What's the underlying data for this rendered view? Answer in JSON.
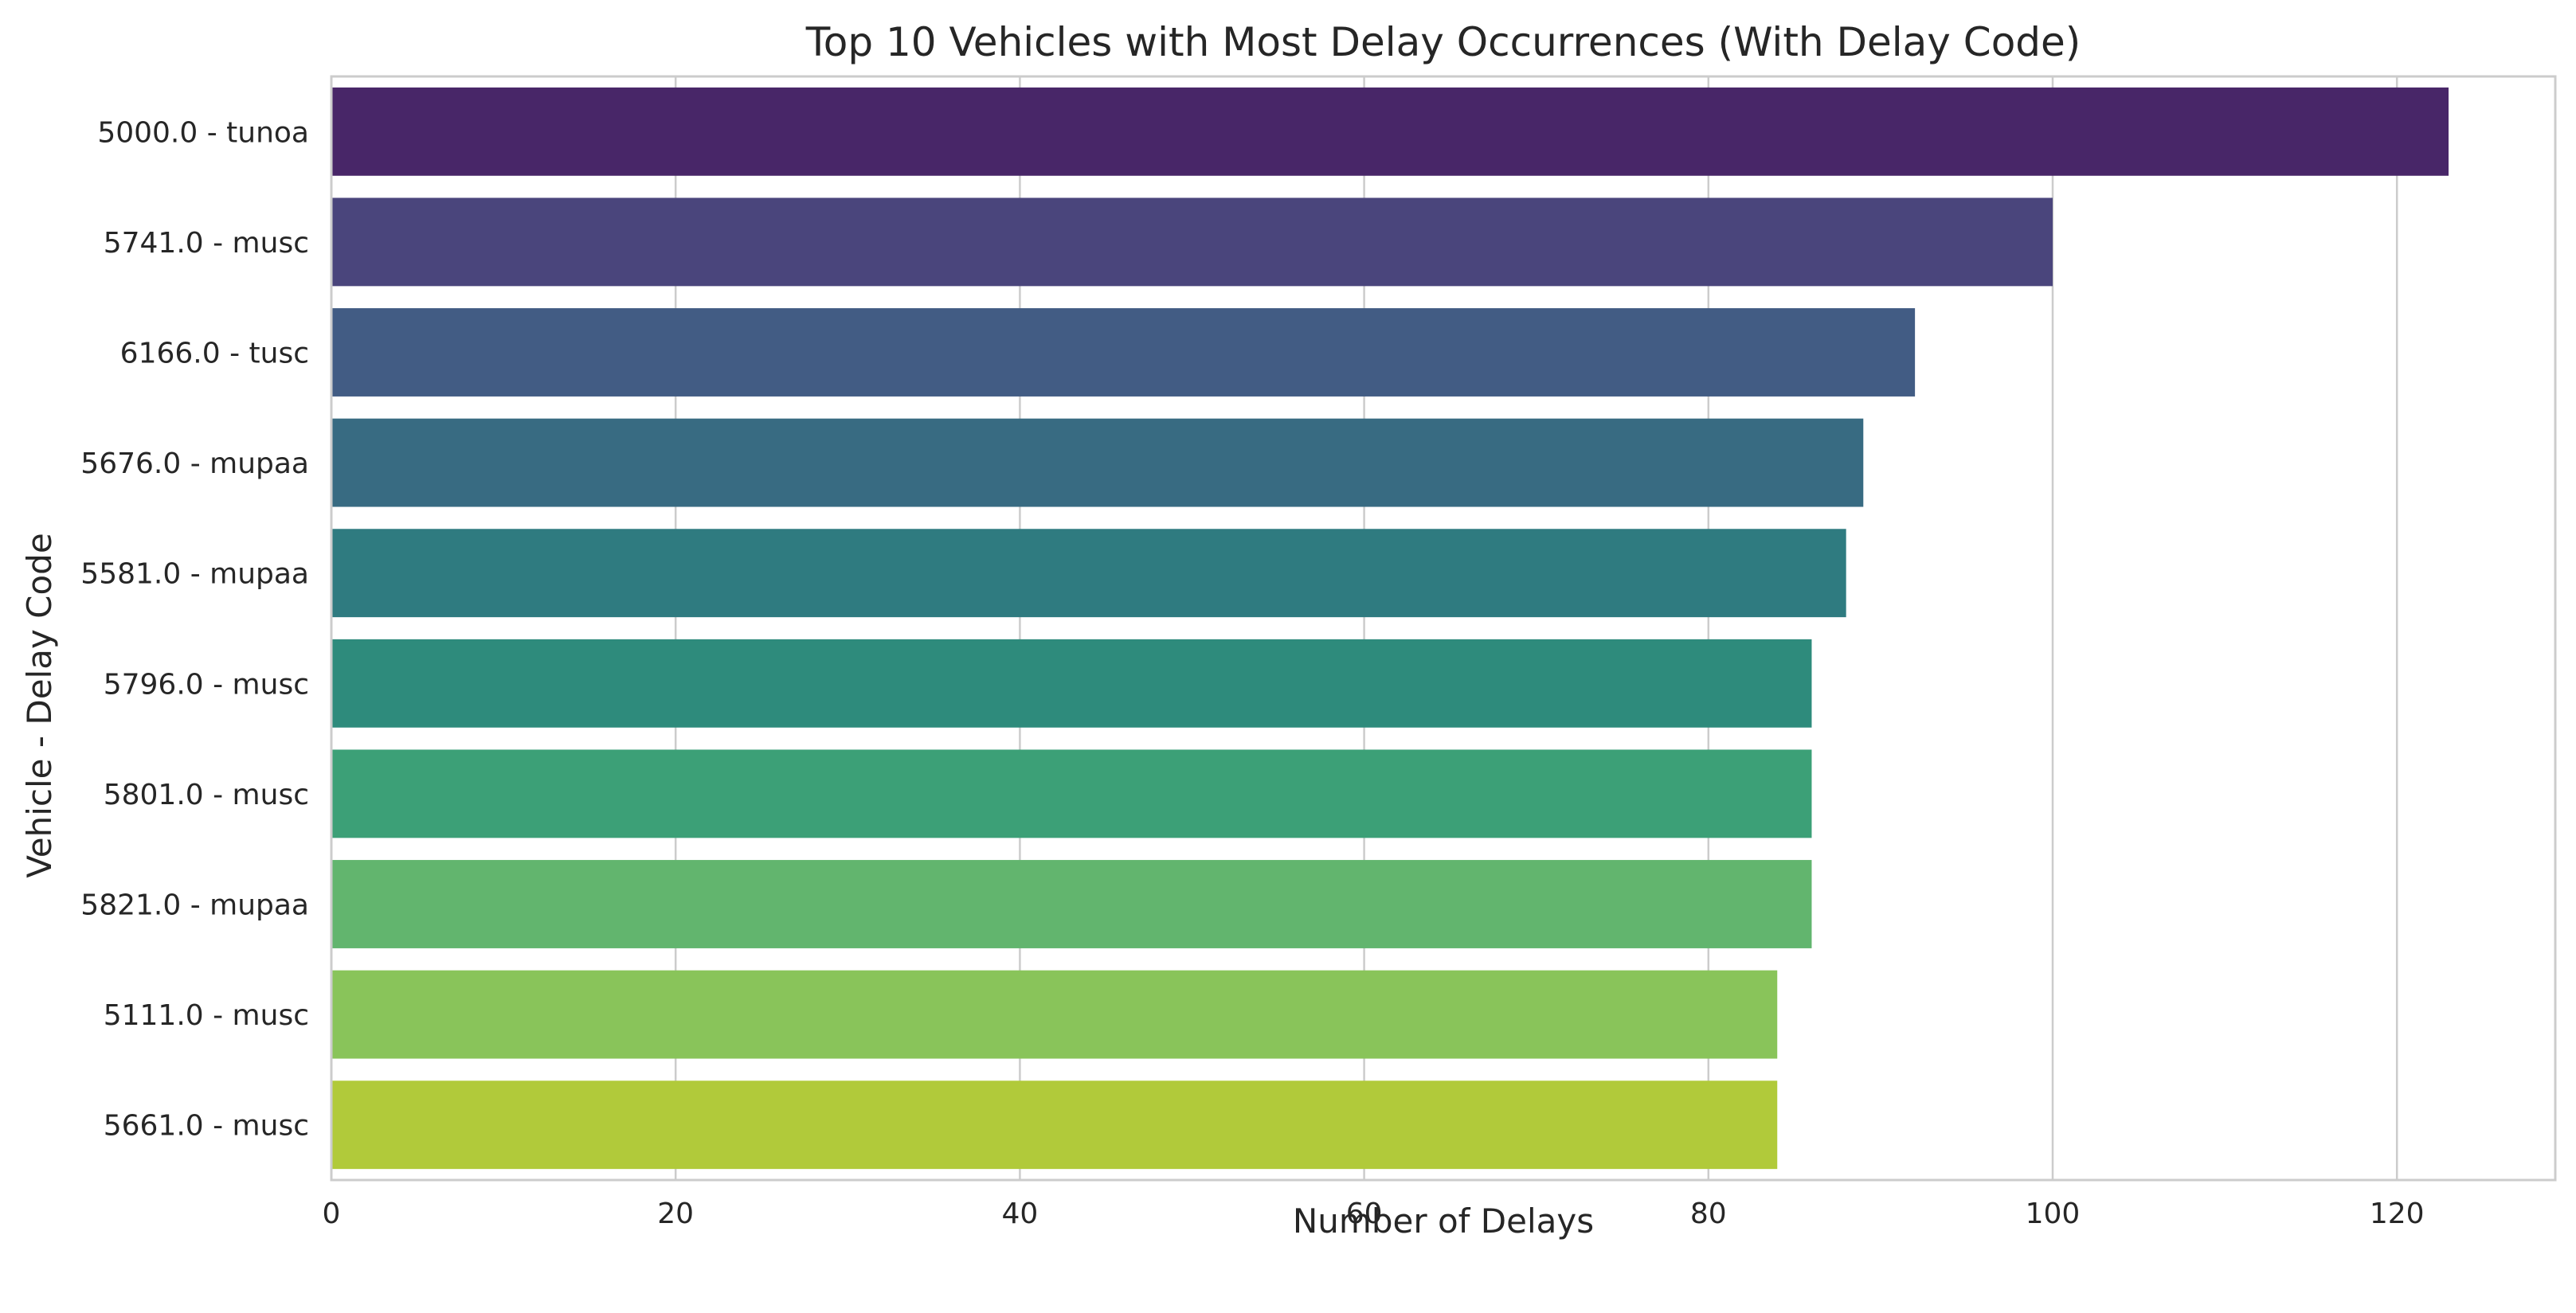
{
  "chart_data": {
    "type": "bar",
    "orientation": "horizontal",
    "title": "Top 10 Vehicles with Most Delay Occurrences (With Delay Code)",
    "xlabel": "Number of Delays",
    "ylabel": "Vehicle - Delay Code",
    "categories": [
      "5000.0 - tunoa",
      "5741.0 - musc",
      "6166.0 - tusc",
      "5676.0 - mupaa",
      "5581.0 - mupaa",
      "5796.0 - musc",
      "5801.0 - musc",
      "5821.0 - mupaa",
      "5111.0 - musc",
      "5661.0 - musc"
    ],
    "values": [
      123,
      100,
      92,
      89,
      88,
      86,
      86,
      86,
      84,
      84
    ],
    "xlim": [
      0,
      129.2
    ],
    "xticks": [
      0,
      20,
      40,
      60,
      80,
      100,
      120
    ],
    "grid": true,
    "legend": "none",
    "palette": "viridis",
    "colors": [
      "#482668",
      "#4a457c",
      "#425c84",
      "#386b82",
      "#2f7b80",
      "#2e8b7c",
      "#3ca077",
      "#62b56e",
      "#89c45a",
      "#b1ca3a"
    ],
    "grid_color": "#cccccc",
    "spine_color": "#cccccc",
    "text_color": "#262626"
  }
}
